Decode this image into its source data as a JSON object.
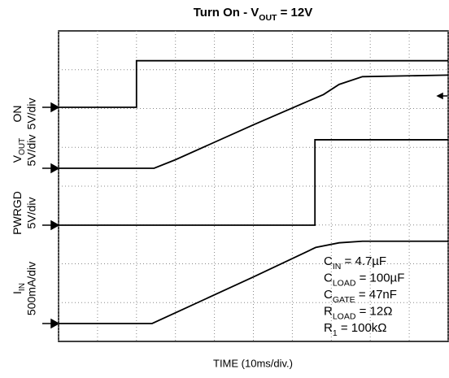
{
  "chart_data": {
    "type": "scope",
    "title": {
      "main": "Turn On - V",
      "sub": "OUT",
      "rest": " = 12V"
    },
    "x_label": "TIME (10ms/div.)",
    "xlim": [
      0,
      100
    ],
    "xticks": [
      0,
      10,
      20,
      30,
      40,
      50,
      60,
      70,
      80,
      90,
      100
    ],
    "grid": true,
    "series": [
      {
        "name": "ON",
        "scale": "5V/div",
        "color": "#000000",
        "x": [
          0,
          20,
          20,
          100
        ],
        "values": [
          0,
          0,
          6,
          6
        ]
      },
      {
        "name": "V",
        "name_sub": "OUT",
        "scale": "5V/div",
        "color": "#000000",
        "x": [
          0,
          24.5,
          30,
          50,
          68,
          72,
          78,
          100
        ],
        "values": [
          0,
          0,
          1.1,
          5.6,
          9.5,
          10.8,
          11.8,
          12
        ]
      },
      {
        "name": "PWRGD",
        "scale": "5V/div",
        "color": "#000000",
        "x": [
          0,
          65.8,
          65.8,
          100
        ],
        "values": [
          0,
          0,
          11,
          11
        ]
      },
      {
        "name": "I",
        "name_sub": "IN",
        "scale": "500mA/div",
        "color": "#000000",
        "x": [
          0,
          24,
          50,
          66,
          72,
          78,
          100
        ],
        "values": [
          0,
          0,
          0.6,
          0.98,
          1.04,
          1.06,
          1.06
        ]
      }
    ],
    "annotations": [
      {
        "main": "C",
        "sub": "IN",
        "rest": " = 4.7µF"
      },
      {
        "main": "C",
        "sub": "LOAD",
        "rest": " = 100µF"
      },
      {
        "main": "C",
        "sub": "GATE",
        "rest": " = 47nF"
      },
      {
        "main": "R",
        "sub": "LOAD",
        "rest": " = 12Ω"
      },
      {
        "main": "R",
        "sub": "1",
        "rest": " = 100kΩ"
      }
    ]
  }
}
